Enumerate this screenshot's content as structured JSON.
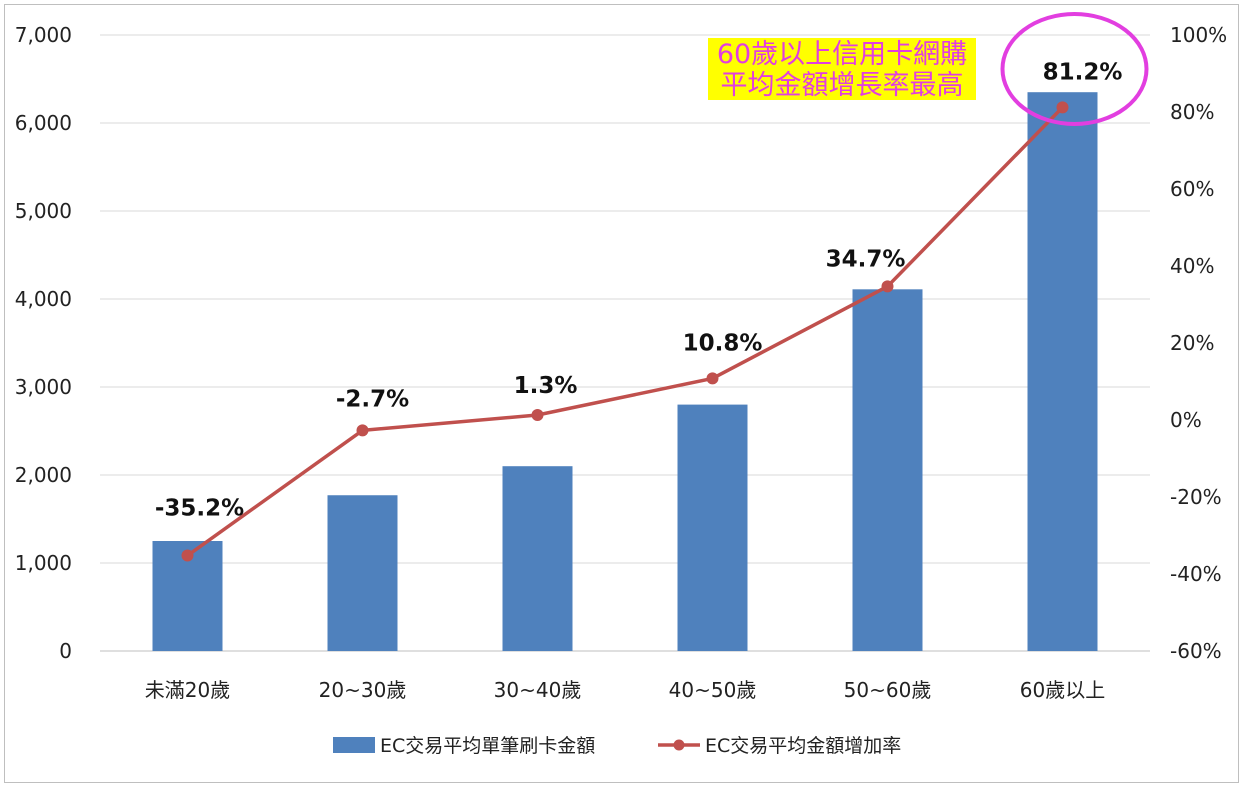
{
  "chart_data": {
    "type": "bar",
    "categories": [
      "未滿20歲",
      "20~30歲",
      "30~40歲",
      "40~50歲",
      "50~60歲",
      "60歲以上"
    ],
    "series": [
      {
        "name": "EC交易平均單筆刷卡金額",
        "kind": "bar",
        "axis": "left",
        "color": "#4f81bd",
        "values": [
          1250,
          1770,
          2100,
          2800,
          4110,
          6350
        ]
      },
      {
        "name": "EC交易平均金額增加率",
        "kind": "line",
        "axis": "right",
        "color": "#c0504d",
        "values": [
          -35.2,
          -2.7,
          1.3,
          10.8,
          34.7,
          81.2
        ]
      }
    ],
    "data_labels": [
      "-35.2%",
      "-2.7%",
      "1.3%",
      "10.8%",
      "34.7%",
      "81.2%"
    ],
    "ylim_left": [
      0,
      7000
    ],
    "yticks_left": [
      "0",
      "1,000",
      "2,000",
      "3,000",
      "4,000",
      "5,000",
      "6,000",
      "7,000"
    ],
    "ylim_right": [
      -60,
      100
    ],
    "yticks_right": [
      "-60%",
      "-40%",
      "-20%",
      "0%",
      "20%",
      "40%",
      "60%",
      "80%",
      "100%"
    ],
    "grid": true,
    "legend_position": "bottom",
    "annotation": {
      "lines": [
        "60歲以上信用卡網購",
        "平均金額增長率最高"
      ],
      "highlight": "#ffff00",
      "color": "#e23ee0"
    }
  }
}
